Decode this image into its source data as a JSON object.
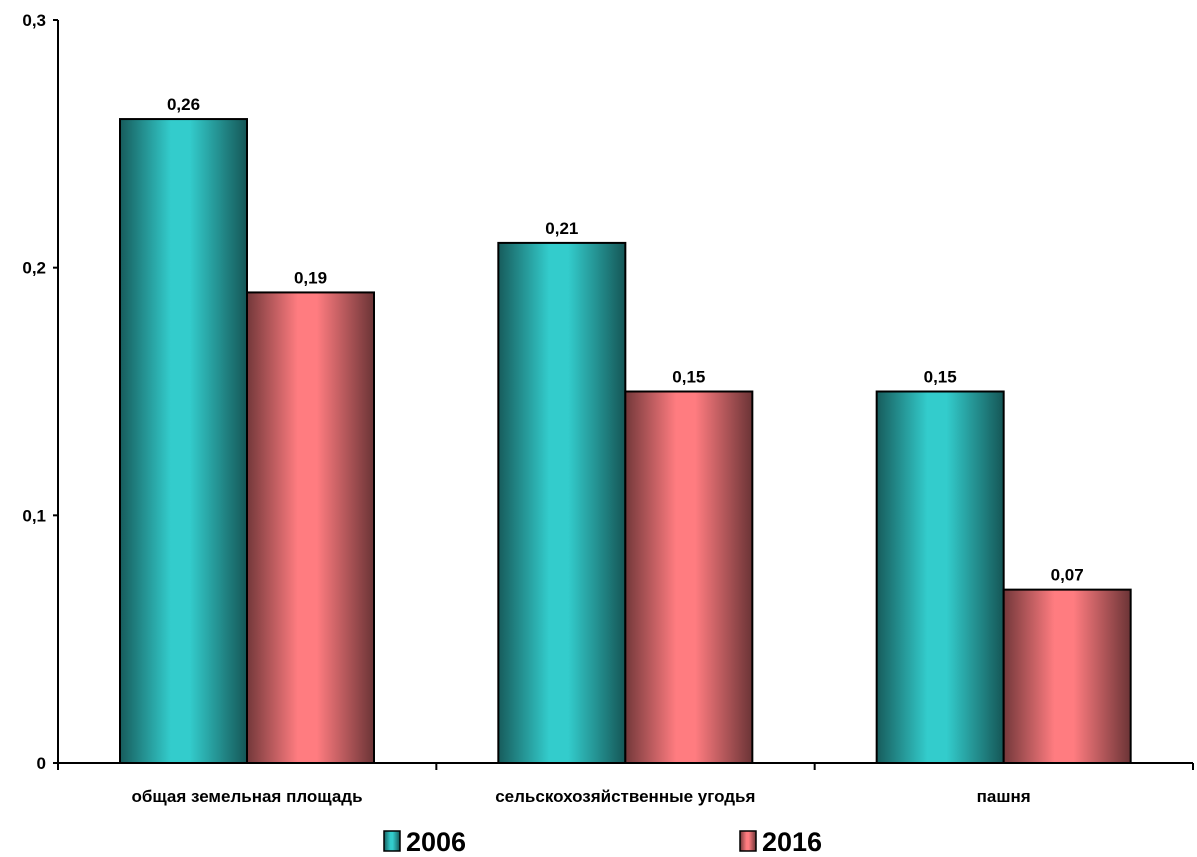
{
  "chart_data": {
    "type": "bar",
    "categories": [
      "общая земельная площадь",
      "сельскохозяйственные угодья",
      "пашня"
    ],
    "series": [
      {
        "name": "2006",
        "values": [
          0.26,
          0.21,
          0.15
        ],
        "color": "#33CCCC",
        "data_labels": [
          "0,26",
          "0,21",
          "0,15"
        ]
      },
      {
        "name": "2016",
        "values": [
          0.19,
          0.15,
          0.07
        ],
        "color": "#FF7C80",
        "data_labels": [
          "0,19",
          "0,15",
          "0,07"
        ]
      }
    ],
    "ylim": [
      0,
      0.3
    ],
    "yticks": [
      0,
      0.1,
      0.2,
      0.3
    ],
    "ytick_labels": [
      "0",
      "0,1",
      "0,2",
      "0,3"
    ],
    "title": "",
    "xlabel": "",
    "ylabel": "",
    "grid": false,
    "legend_position": "bottom"
  }
}
